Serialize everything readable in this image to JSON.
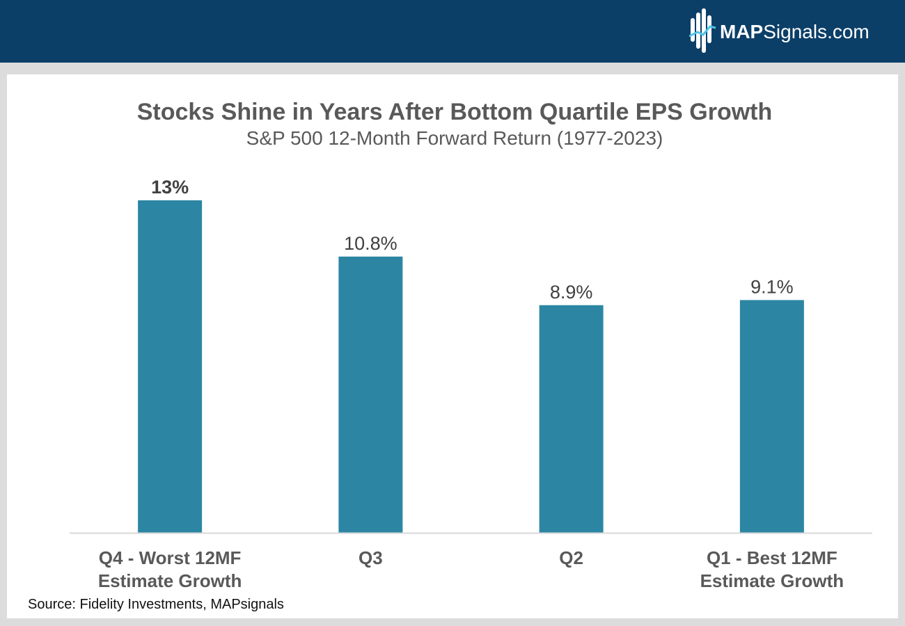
{
  "header": {
    "logo_bold": "MAP",
    "logo_regular": "Signals.com"
  },
  "colors": {
    "header_bg": "#0c3f68",
    "bar": "#2c86a3",
    "axis": "#d9d9d9"
  },
  "chart_data": {
    "type": "bar",
    "title": "Stocks Shine in Years After Bottom Quartile EPS Growth",
    "subtitle": "S&P 500 12-Month Forward Return (1977-2023)",
    "categories": [
      [
        "Q4 - Worst 12MF",
        "Estimate Growth"
      ],
      [
        "Q3"
      ],
      [
        "Q2"
      ],
      [
        "Q1 - Best 12MF",
        "Estimate Growth"
      ]
    ],
    "values": [
      13,
      10.8,
      8.9,
      9.1
    ],
    "data_labels": [
      "13%",
      "10.8%",
      "8.9%",
      "9.1%"
    ],
    "highlight_index": 0,
    "ylim": [
      0,
      13
    ],
    "grid": false,
    "xlabel": "",
    "ylabel": ""
  },
  "footer": {
    "source": "Source: Fidelity Investments, MAPsignals"
  }
}
